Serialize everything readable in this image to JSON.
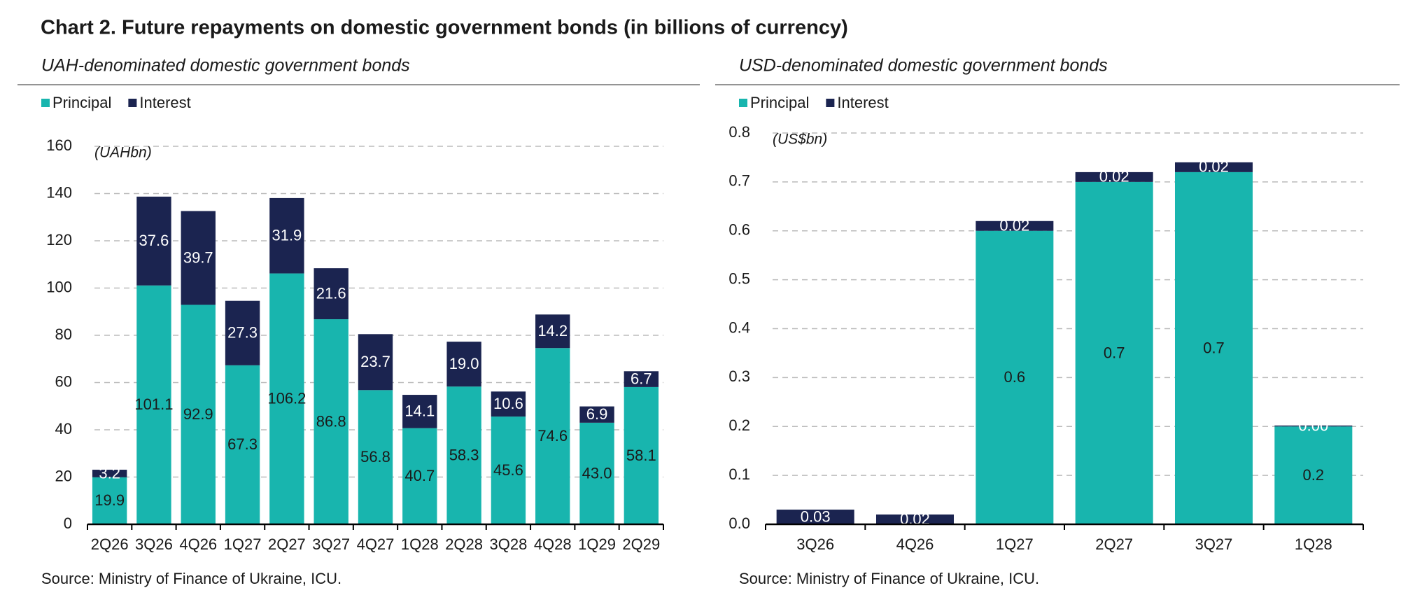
{
  "title": "Chart 2. Future repayments on domestic government bonds (in billions of currency)",
  "chart_data": [
    {
      "type": "bar",
      "stacked": true,
      "grid": true,
      "legend": "top-left",
      "subtitle": "UAH-denominated domestic government bonds",
      "annotation": "(UAHbn)",
      "source": "Source: Ministry of Finance of Ukraine, ICU.",
      "categories": [
        "2Q26",
        "3Q26",
        "4Q26",
        "1Q27",
        "2Q27",
        "3Q27",
        "4Q27",
        "1Q28",
        "2Q28",
        "3Q28",
        "4Q28",
        "1Q29",
        "2Q29"
      ],
      "series": [
        {
          "name": "Principal",
          "color": "#18b5ae",
          "values": [
            19.9,
            101.1,
            92.9,
            67.3,
            106.2,
            86.8,
            56.8,
            40.7,
            58.3,
            45.6,
            74.6,
            43.0,
            58.1
          ],
          "value_labels": [
            "19.9",
            "101.1",
            "92.9",
            "67.3",
            "106.2",
            "86.8",
            "56.8",
            "40.7",
            "58.3",
            "45.6",
            "74.6",
            "43.0",
            "58.1"
          ]
        },
        {
          "name": "Interest",
          "color": "#1b2450",
          "values": [
            3.2,
            37.6,
            39.7,
            27.3,
            31.9,
            21.6,
            23.7,
            14.1,
            19.0,
            10.6,
            14.2,
            6.9,
            6.7
          ],
          "value_labels": [
            "3.2",
            "37.6",
            "39.7",
            "27.3",
            "31.9",
            "21.6",
            "23.7",
            "14.1",
            "19.0",
            "10.6",
            "14.2",
            "6.9",
            "6.7"
          ]
        }
      ],
      "ylim": [
        0,
        160
      ],
      "yticks": [
        0,
        20,
        40,
        60,
        80,
        100,
        120,
        140,
        160
      ]
    },
    {
      "type": "bar",
      "stacked": true,
      "grid": true,
      "legend": "top-left",
      "subtitle": "USD-denominated domestic government bonds",
      "annotation": "(US$bn)",
      "source": "Source: Ministry of Finance of Ukraine, ICU.",
      "categories": [
        "3Q26",
        "4Q26",
        "1Q27",
        "2Q27",
        "3Q27",
        "1Q28"
      ],
      "series": [
        {
          "name": "Principal",
          "color": "#18b5ae",
          "values": [
            0,
            0,
            0.6,
            0.7,
            0.72,
            0.2
          ],
          "value_labels": [
            null,
            null,
            "0.6",
            "0.7",
            "0.7",
            "0.2"
          ]
        },
        {
          "name": "Interest",
          "color": "#1b2450",
          "values": [
            0.03,
            0.02,
            0.02,
            0.02,
            0.02,
            0.002
          ],
          "value_labels": [
            "0.03",
            "0.02",
            "0.02",
            "0.02",
            "0.02",
            "0.00"
          ]
        }
      ],
      "ylim": [
        0,
        0.8
      ],
      "yticks": [
        {
          "value": 0,
          "label": "0.0"
        },
        0.1,
        0.2,
        0.3,
        0.4,
        0.5,
        0.6,
        0.7,
        0.8
      ]
    }
  ]
}
